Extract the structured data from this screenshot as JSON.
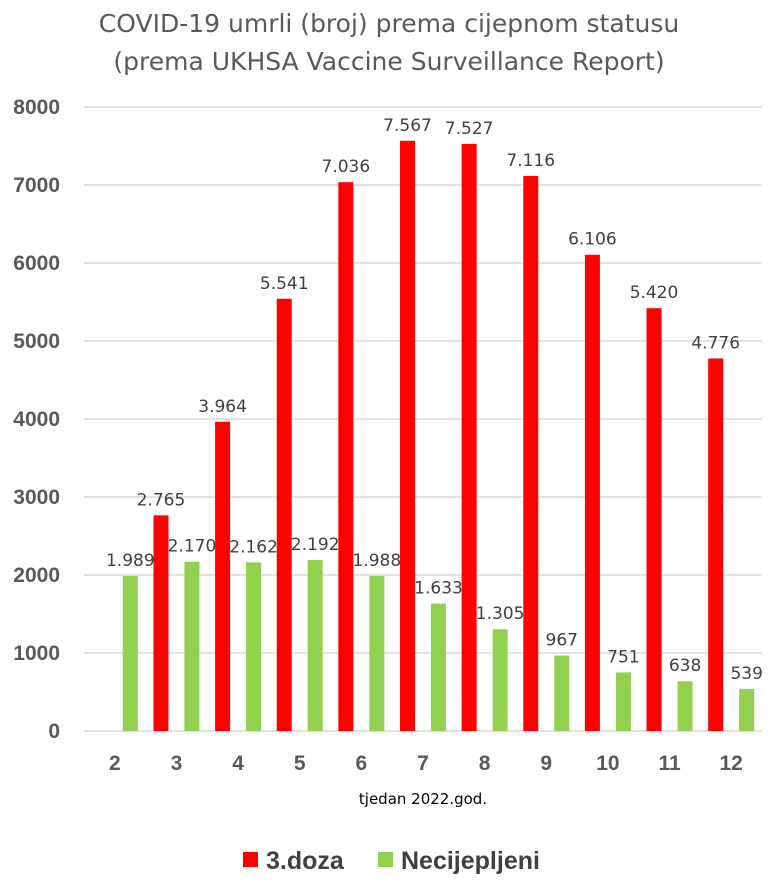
{
  "chart_data": {
    "type": "bar",
    "title_lines": [
      "COVID-19 umrli (broj) prema cijepnom statusu",
      "(prema UKHSA Vaccine Surveillance Report)"
    ],
    "xlabel": "tjedan 2022.god.",
    "ylabel": "",
    "ylim": [
      0,
      8000
    ],
    "yticks": [
      "0",
      "1000",
      "2000",
      "3000",
      "4000",
      "5000",
      "6000",
      "7000",
      "8000"
    ],
    "grid": true,
    "legend_position": "bottom",
    "categories": [
      "2",
      "3",
      "4",
      "5",
      "6",
      "7",
      "8",
      "9",
      "10",
      "11",
      "12"
    ],
    "series": [
      {
        "name": "3.doza",
        "color": "#ff0000",
        "values": [
          null,
          2765,
          3964,
          5541,
          7036,
          7567,
          7527,
          7116,
          6106,
          5420,
          4776
        ],
        "labels": [
          "",
          "2.765",
          "3.964",
          "5.541",
          "7.036",
          "7.567",
          "7.527",
          "7.116",
          "6.106",
          "5.420",
          "4.776"
        ]
      },
      {
        "name": "Necijepljeni",
        "color": "#92d050",
        "values": [
          1989,
          2170,
          2162,
          2192,
          1988,
          1633,
          1305,
          967,
          751,
          638,
          539
        ],
        "labels": [
          "1.989",
          "2.170",
          "2.162",
          "2.192",
          "1.988",
          "1.633",
          "1.305",
          "967",
          "751",
          "638",
          "539"
        ]
      }
    ]
  }
}
